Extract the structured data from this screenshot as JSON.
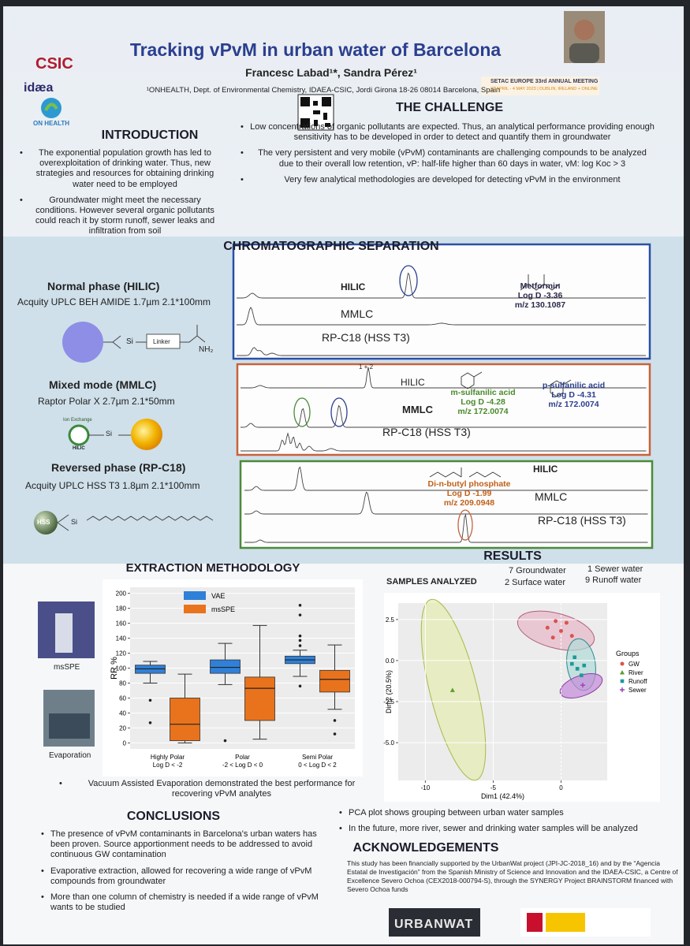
{
  "header": {
    "title": "Tracking vPvM in urban water of Barcelona",
    "authors": "Francesc Labad¹*, Sandra Pérez¹",
    "affiliation": "¹ONHEALTH, Dept. of Environmental Chemistry, IDAEA-CSIC, Jordi Girona 18-26 08014 Barcelona, Spain",
    "logos": [
      "CSIC",
      "idæa",
      "ON HEALTH"
    ],
    "conference": {
      "name": "SETAC EUROPE 33rd ANNUAL MEETING",
      "dates": "30 APRIL - 4 MAY 2023 | DUBLIN, IRELAND + ONLINE"
    }
  },
  "introduction": {
    "heading": "INTRODUCTION",
    "bullets": [
      "The exponential population growth has led to overexploitation of drinking water. Thus, new strategies and resources for obtaining drinking water need to be employed",
      "Groundwater might meet the necessary conditions. However several organic pollutants could reach it by storm runoff, sewer leaks and infiltration from soil"
    ]
  },
  "challenge": {
    "heading": "THE CHALLENGE",
    "bullets": [
      "Low concentrations of organic pollutants are expected. Thus, an analytical performance providing enough sensitivity has to be developed in order to detect and quantify them in groundwater",
      "The very persistent and very mobile (vPvM) contaminants are challenging compounds to be analyzed due to their overall low retention, vP: half-life higher than 60 days in water, vM: log Koc > 3",
      "Very few analytical methodologies are developed for detecting vPvM in the environment"
    ]
  },
  "chromatography": {
    "heading": "CHROMATOGRAPHIC SEPARATION",
    "phases": [
      {
        "name": "Normal phase (HILIC)",
        "column": "Acquity UPLC BEH AMIDE 1.7µm 2.1*100mm",
        "labels": [
          "Si",
          "Linker",
          "NH₂"
        ]
      },
      {
        "name": "Mixed mode (MMLC)",
        "column": "Raptor Polar X 2.7µm 2.1*50mm",
        "labels": [
          "Ion Exchange",
          "HILIC",
          "Si"
        ]
      },
      {
        "name": "Reversed phase (RP-C18)",
        "column": "Acquity UPLC HSS T3 1.8µm 2.1*100mm",
        "labels": [
          "HSS",
          "Si"
        ]
      }
    ],
    "panels": [
      {
        "modes": [
          "HILIC",
          "MMLC",
          "RP-C18 (HSS T3)"
        ],
        "compounds": [
          {
            "name": "Metformin",
            "logd": "Log D -3.36",
            "mz": "m/z 130.1087"
          }
        ]
      },
      {
        "peak_label": "1 + 2",
        "modes": [
          "HILIC",
          "MMLC",
          "RP-C18 (HSS T3)"
        ],
        "compounds": [
          {
            "name": "m-sulfanilic acid",
            "logd": "Log D -4.28",
            "mz": "m/z 172.0074"
          },
          {
            "name": "p-sulfanilic acid",
            "logd": "Log D -4.31",
            "mz": "m/z 172.0074"
          }
        ]
      },
      {
        "modes": [
          "HILIC",
          "MMLC",
          "RP-C18 (HSS T3)"
        ],
        "compounds": [
          {
            "name": "Di-n-butyl phosphate",
            "logd": "Log D -1.99",
            "mz": "m/z 209.0948"
          }
        ]
      }
    ]
  },
  "extraction": {
    "heading": "EXTRACTION METHODOLOGY",
    "images": [
      "msSPE",
      "Evaporation"
    ],
    "chart": {
      "type": "box",
      "ylabel": "RR %",
      "ylim": [
        -8,
        208
      ],
      "yticks": [
        0,
        20,
        40,
        60,
        80,
        100,
        120,
        140,
        160,
        180,
        200
      ],
      "grid": true,
      "categories": [
        [
          "Highly Polar",
          "Log D < -2"
        ],
        [
          "Polar",
          "-2 < Log D < 0"
        ],
        [
          "Semi Polar",
          "0 < Log D < 2"
        ]
      ],
      "series": [
        {
          "name": "VAE",
          "color": "#2f80d8",
          "boxes": [
            {
              "min": 80,
              "q1": 93,
              "median": 99,
              "q3": 104,
              "max": 109,
              "outliers": [
                57,
                27
              ]
            },
            {
              "min": 78,
              "q1": 93,
              "median": 101,
              "q3": 111,
              "max": 133,
              "outliers": [
                3
              ]
            },
            {
              "min": 89,
              "q1": 106,
              "median": 111,
              "q3": 116,
              "max": 124,
              "outliers": [
                184,
                171,
                143,
                137,
                130,
                76
              ]
            }
          ]
        },
        {
          "name": "msSPE",
          "color": "#e8731c",
          "boxes": [
            {
              "min": 0,
              "q1": 3,
              "median": 25,
              "q3": 60,
              "max": 92,
              "outliers": []
            },
            {
              "min": 5,
              "q1": 30,
              "median": 73,
              "q3": 88,
              "max": 157,
              "outliers": []
            },
            {
              "min": 45,
              "q1": 68,
              "median": 85,
              "q3": 97,
              "max": 131,
              "outliers": [
                30,
                12
              ]
            }
          ]
        }
      ]
    },
    "bullets": [
      "Vacuum Assisted Evaporation demonstrated the best performance for recovering vPvM analytes"
    ]
  },
  "conclusions": {
    "heading": "CONCLUSIONS",
    "bullets": [
      "The presence of vPvM contaminants in Barcelona's urban waters has been proven. Source apportionment needs to be addressed to avoid continuous GW contamination",
      "Evaporative extraction, allowed for recovering a wide range of vPvM compounds from groundwater",
      "More than one column of chemistry is needed if a wide range of vPvM wants to be studied"
    ]
  },
  "results": {
    "heading": "RESULTS",
    "samples_heading": "SAMPLES ANALYZED",
    "samples": [
      "7 Groundwater",
      "1 Sewer water",
      "2 Surface water",
      "9 Runoff water"
    ],
    "chart": {
      "type": "scatter",
      "xlabel": "Dim1 (42.4%)",
      "ylabel": "Dim2 (20.5%)",
      "xlim": [
        -12,
        3.4
      ],
      "ylim": [
        -7.3,
        3.5
      ],
      "xticks": [
        -10,
        -5,
        0
      ],
      "yticks": [
        {
          "value": 2.5,
          "label": "2.5"
        },
        {
          "value": 0,
          "label": "0.0"
        },
        {
          "value": -2.5,
          "label": "-2.5"
        },
        {
          "value": -5,
          "label": "-5.0"
        }
      ],
      "legend_title": "Groups",
      "groups": [
        {
          "name": "GW",
          "color": "#d9534f",
          "marker": "circle",
          "x": [
            -1,
            -0.4,
            0,
            0.4,
            0.8,
            -0.6
          ],
          "y": [
            2.0,
            2.4,
            1.8,
            2.3,
            1.5,
            1.4
          ]
        },
        {
          "name": "River",
          "color": "#5a9e2f",
          "marker": "triangle",
          "x": [
            -8
          ],
          "y": [
            -1.8
          ]
        },
        {
          "name": "Runoff",
          "color": "#1a9a9a",
          "marker": "square",
          "x": [
            0.8,
            1.2,
            1.5,
            1.0,
            1.7
          ],
          "y": [
            -0.2,
            -0.5,
            -0.9,
            0.2,
            -0.3
          ]
        },
        {
          "name": "Sewer",
          "color": "#9b3fb5",
          "marker": "plus",
          "x": [
            1.6
          ],
          "y": [
            -1.5
          ]
        }
      ]
    },
    "bullets": [
      "PCA plot shows grouping between urban water samples",
      "In the future, more river, sewer and drinking water samples will be analyzed"
    ]
  },
  "acknowledgements": {
    "heading": "ACKNOWLEDGEMENTS",
    "text": "This study has been financially supported by the UrbanWat project (JPI-JC-2018_16) and by the “Agencia Estatal de Investigación” from the Spanish Ministry of Science and Innovation and the IDAEA-CSIC, a Centre of Excellence Severo Ochoa (CEX2018-000794-S), through the SYNERGY Project BRAINSTORM financed with Severo Ochoa funds",
    "logos": [
      "URBANWAT"
    ]
  }
}
